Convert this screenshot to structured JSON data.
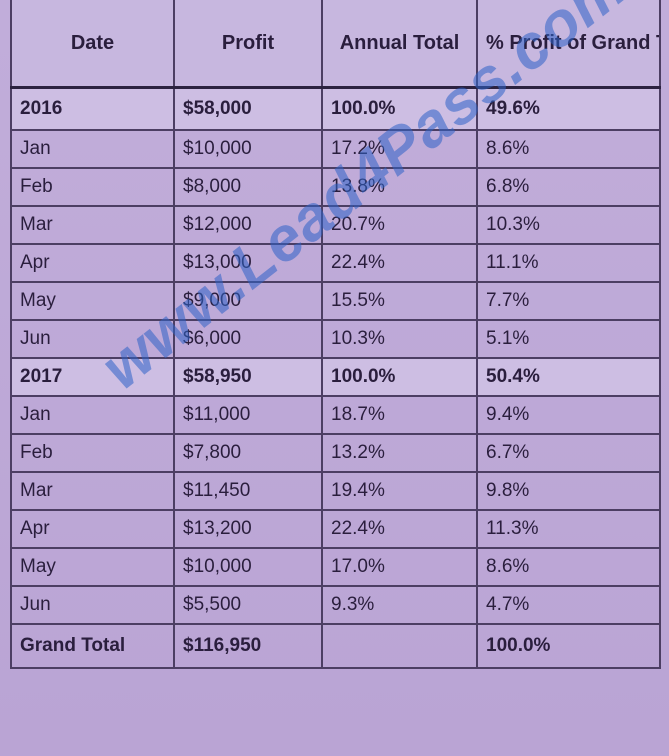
{
  "headers": [
    "Date",
    "Profit",
    "Annual Total",
    "% Profit of Grand Total"
  ],
  "rows": [
    {
      "date": "2016",
      "profit": "$58,000",
      "annual_total": "100.0%",
      "pct_grand_total": "49.6%",
      "is_year": true
    },
    {
      "date": "Jan",
      "profit": "$10,000",
      "annual_total": "17.2%",
      "pct_grand_total": "8.6%",
      "is_year": false
    },
    {
      "date": "Feb",
      "profit": "$8,000",
      "annual_total": "13.8%",
      "pct_grand_total": "6.8%",
      "is_year": false
    },
    {
      "date": "Mar",
      "profit": "$12,000",
      "annual_total": "20.7%",
      "pct_grand_total": "10.3%",
      "is_year": false
    },
    {
      "date": "Apr",
      "profit": "$13,000",
      "annual_total": "22.4%",
      "pct_grand_total": "11.1%",
      "is_year": false
    },
    {
      "date": "May",
      "profit": "$9,000",
      "annual_total": "15.5%",
      "pct_grand_total": "7.7%",
      "is_year": false
    },
    {
      "date": "Jun",
      "profit": "$6,000",
      "annual_total": "10.3%",
      "pct_grand_total": "5.1%",
      "is_year": false
    },
    {
      "date": "2017",
      "profit": "$58,950",
      "annual_total": "100.0%",
      "pct_grand_total": "50.4%",
      "is_year": true
    },
    {
      "date": "Jan",
      "profit": "$11,000",
      "annual_total": "18.7%",
      "pct_grand_total": "9.4%",
      "is_year": false
    },
    {
      "date": "Feb",
      "profit": "$7,800",
      "annual_total": "13.2%",
      "pct_grand_total": "6.7%",
      "is_year": false
    },
    {
      "date": "Mar",
      "profit": "$11,450",
      "annual_total": "19.4%",
      "pct_grand_total": "9.8%",
      "is_year": false
    },
    {
      "date": "Apr",
      "profit": "$13,200",
      "annual_total": "22.4%",
      "pct_grand_total": "11.3%",
      "is_year": false
    },
    {
      "date": "May",
      "profit": "$10,000",
      "annual_total": "17.0%",
      "pct_grand_total": "8.6%",
      "is_year": false
    },
    {
      "date": "Jun",
      "profit": "$5,500",
      "annual_total": "9.3%",
      "pct_grand_total": "4.7%",
      "is_year": false
    }
  ],
  "grand_total": {
    "date": "Grand Total",
    "profit": "$116,950",
    "annual_total": "",
    "pct_grand_total": "100.0%"
  },
  "watermark": "www.Lead4Pass.com"
}
